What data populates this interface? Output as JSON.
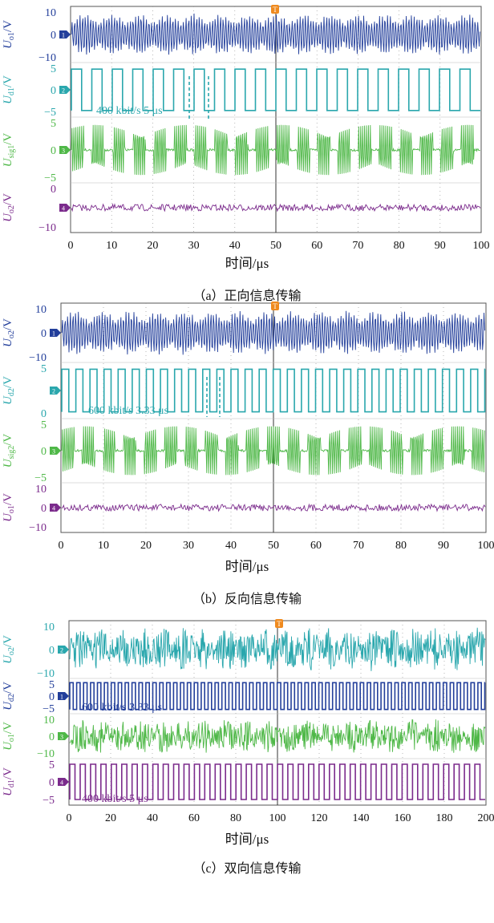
{
  "colors": {
    "blue": "#233f9b",
    "teal": "#2aa7ad",
    "green": "#4fb848",
    "purple": "#7b2b8c",
    "orange": "#ef8a1e"
  },
  "chart_data": [
    {
      "type": "line",
      "caption": "（a）正向信息传输",
      "xlabel": "时间/μs",
      "xlim": [
        0,
        100
      ],
      "xticks": [
        "0",
        "10",
        "20",
        "30",
        "40",
        "50",
        "60",
        "70",
        "80",
        "90",
        "100"
      ],
      "trigger_marker": "T",
      "bit_annotation": "400 kbit/s 5 μs",
      "series": [
        {
          "name": "U_o1/V",
          "label_main": "U",
          "label_sub": "o1",
          "label_unit": "/V",
          "color": "blue",
          "channel": "1",
          "waveform": "modulated-carrier",
          "ylim": [
            -10,
            10
          ],
          "ticks": [
            "10",
            "0",
            "−10"
          ]
        },
        {
          "name": "U_d1/V",
          "label_main": "U",
          "label_sub": "d1",
          "label_unit": "/V",
          "color": "teal",
          "channel": "2",
          "waveform": "square",
          "ylim": [
            -5,
            5
          ],
          "ticks": [
            "5",
            "0",
            "−5"
          ],
          "period_us": 5
        },
        {
          "name": "U_sig1/V",
          "label_main": "U",
          "label_sub": "sig1",
          "label_unit": "/V",
          "color": "green",
          "channel": "3",
          "waveform": "burst",
          "ylim": [
            -5,
            5
          ],
          "ticks": [
            "5",
            "0",
            "−5"
          ]
        },
        {
          "name": "U_o2/V",
          "label_main": "U",
          "label_sub": "o2",
          "label_unit": "/V",
          "color": "purple",
          "channel": "4",
          "waveform": "noise",
          "ylim": [
            -10,
            10
          ],
          "ticks": [
            "0",
            "−10"
          ]
        }
      ]
    },
    {
      "type": "line",
      "caption": "（b）反向信息传输",
      "xlabel": "时间/μs",
      "xlim": [
        0,
        100
      ],
      "xticks": [
        "0",
        "10",
        "20",
        "30",
        "40",
        "50",
        "60",
        "70",
        "80",
        "90",
        "100"
      ],
      "trigger_marker": "T",
      "bit_annotation": "600 kbit/s 3.33 μs",
      "series": [
        {
          "name": "U_o2/V",
          "label_main": "U",
          "label_sub": "o2",
          "label_unit": "/V",
          "color": "blue",
          "channel": "1",
          "waveform": "modulated-carrier",
          "ylim": [
            -10,
            10
          ],
          "ticks": [
            "10",
            "0",
            "−10"
          ]
        },
        {
          "name": "U_d2/V",
          "label_main": "U",
          "label_sub": "d2",
          "label_unit": "/V",
          "color": "teal",
          "channel": "2",
          "waveform": "square",
          "ylim": [
            -5,
            5
          ],
          "ticks": [
            "5",
            "0"
          ],
          "period_us": 3.33
        },
        {
          "name": "U_sig2/V",
          "label_main": "U",
          "label_sub": "sig2",
          "label_unit": "/V",
          "color": "green",
          "channel": "3",
          "waveform": "burst",
          "ylim": [
            -5,
            5
          ],
          "ticks": [
            "5",
            "0",
            "−5"
          ]
        },
        {
          "name": "U_o1/V",
          "label_main": "U",
          "label_sub": "o1",
          "label_unit": "/V",
          "color": "purple",
          "channel": "4",
          "waveform": "noise",
          "ylim": [
            -10,
            10
          ],
          "ticks": [
            "10",
            "0",
            "−10"
          ]
        }
      ]
    },
    {
      "type": "line",
      "caption": "（c）双向信息传输",
      "xlabel": "时间/μs",
      "xlim": [
        0,
        200
      ],
      "xticks": [
        "0",
        "20",
        "40",
        "60",
        "80",
        "100",
        "120",
        "140",
        "160",
        "180",
        "200"
      ],
      "trigger_marker": "T",
      "series": [
        {
          "name": "U_o2/V",
          "label_main": "U",
          "label_sub": "o2",
          "label_unit": "/V",
          "color": "teal",
          "channel": "2",
          "waveform": "dense-noise",
          "ylim": [
            -10,
            10
          ],
          "ticks": [
            "10",
            "0",
            "−10"
          ]
        },
        {
          "name": "U_d2/V",
          "label_main": "U",
          "label_sub": "d2",
          "label_unit": "/V",
          "color": "blue",
          "channel": "1",
          "waveform": "square",
          "ylim": [
            -5,
            5
          ],
          "ticks": [
            "5",
            "0",
            "−5"
          ],
          "period_us": 3.33,
          "bit_annotation": "600 kbit/s  3.33 μs"
        },
        {
          "name": "U_o1/V",
          "label_main": "U",
          "label_sub": "o1",
          "label_unit": "/V",
          "color": "green",
          "channel": "3",
          "waveform": "dense-noise",
          "ylim": [
            -10,
            10
          ],
          "ticks": [
            "10",
            "0",
            "−10"
          ]
        },
        {
          "name": "U_d1/V",
          "label_main": "U",
          "label_sub": "d1",
          "label_unit": "/V",
          "color": "purple",
          "channel": "4",
          "waveform": "square",
          "ylim": [
            -5,
            5
          ],
          "ticks": [
            "5",
            "0",
            "−5"
          ],
          "period_us": 5,
          "bit_annotation": "400 kbit/s   5 μs"
        }
      ]
    }
  ]
}
